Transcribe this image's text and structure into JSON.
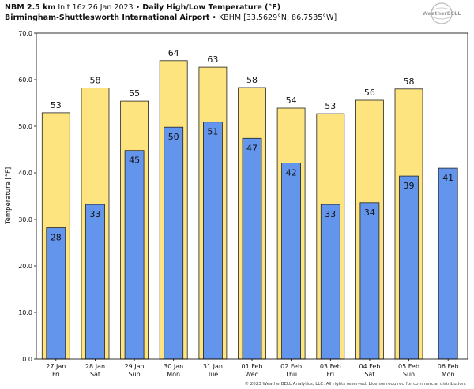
{
  "header": {
    "model": "NBM 2.5 km",
    "init": "Init 16z 26 Jan 2023",
    "separator": "•",
    "title": "Daily High/Low Temperature (°F)",
    "station": "Birmingham-Shuttlesworth International Airport",
    "station_code": "• KBHM [33.5629°N, 86.7535°W]"
  },
  "logo": {
    "text": "WeatherBELL"
  },
  "footer": "© 2023 WeatherBELL Analytics, LLC. All rights reserved. License required for commercial distribution.",
  "colors": {
    "high": "#fde47f",
    "low": "#6495ed",
    "outline": "#222222"
  },
  "chart_data": {
    "type": "bar",
    "ylabel": "Temperature [°F]",
    "ylim": [
      0,
      70
    ],
    "yticks": [
      "0.0",
      "10.0",
      "20.0",
      "30.0",
      "40.0",
      "50.0",
      "60.0",
      "70.0"
    ],
    "grid": false,
    "categories": [
      [
        "27 Jan",
        "Fri"
      ],
      [
        "28 Jan",
        "Sat"
      ],
      [
        "29 Jan",
        "Sun"
      ],
      [
        "30 Jan",
        "Mon"
      ],
      [
        "31 Jan",
        "Tue"
      ],
      [
        "01 Feb",
        "Wed"
      ],
      [
        "02 Feb",
        "Thu"
      ],
      [
        "03 Feb",
        "Fri"
      ],
      [
        "04 Feb",
        "Sat"
      ],
      [
        "05 Feb",
        "Sun"
      ],
      [
        "06 Feb",
        "Mon"
      ]
    ],
    "series": [
      {
        "values": [
          52.9,
          58.2,
          55.4,
          64.1,
          62.7,
          58.3,
          53.9,
          52.7,
          55.6,
          58.0,
          null
        ],
        "labels": [
          "53",
          "58",
          "55",
          "64",
          "63",
          "58",
          "54",
          "53",
          "56",
          "58",
          ""
        ]
      },
      {
        "values": [
          28.2,
          33.2,
          44.8,
          49.8,
          50.9,
          47.4,
          42.1,
          33.2,
          33.6,
          39.3,
          41.0
        ],
        "labels": [
          "28",
          "33",
          "45",
          "50",
          "51",
          "47",
          "42",
          "33",
          "34",
          "39",
          "41"
        ]
      }
    ]
  }
}
